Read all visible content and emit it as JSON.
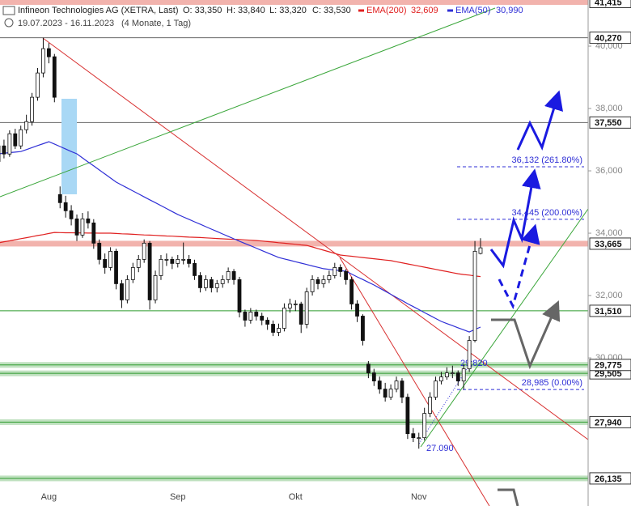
{
  "chart_data": {
    "type": "candlestick",
    "title": "Infineon Technologies AG (XETRA, Last)",
    "quote": [
      "O: 33,350",
      "H: 33,840",
      "L: 33,320",
      "C: 33,530"
    ],
    "date_range": "19.07.2023 - 16.11.2023",
    "period": "(4 Monate, 1 Tag)",
    "categories": [
      null,
      null,
      null,
      null,
      null,
      null,
      null,
      null,
      null,
      "Aug",
      null,
      null,
      null,
      null,
      null,
      null,
      null,
      null,
      null,
      null,
      null,
      null,
      null,
      null,
      null,
      null,
      null,
      null,
      null,
      null,
      null,
      null,
      "Sep",
      null,
      null,
      null,
      null,
      null,
      null,
      null,
      null,
      null,
      null,
      null,
      null,
      null,
      null,
      null,
      null,
      null,
      null,
      null,
      null,
      "Okt",
      null,
      null,
      null,
      null,
      null,
      null,
      null,
      null,
      null,
      null,
      null,
      null,
      null,
      null,
      null,
      null,
      null,
      null,
      null,
      null,
      null,
      "Nov",
      null,
      null,
      null,
      null,
      null,
      null,
      null,
      null,
      null,
      null,
      null
    ],
    "candles": [
      [
        36300,
        36950,
        36200,
        36800
      ],
      [
        36800,
        37000,
        36400,
        36540
      ],
      [
        36540,
        37300,
        36450,
        37190
      ],
      [
        37190,
        37350,
        36700,
        36800
      ],
      [
        36800,
        37450,
        36700,
        37320
      ],
      [
        37320,
        37800,
        37200,
        37580
      ],
      [
        37580,
        38500,
        37450,
        38360
      ],
      [
        38360,
        39300,
        38250,
        39140
      ],
      [
        39140,
        40270,
        39000,
        39920
      ],
      [
        39920,
        40100,
        39450,
        39660
      ],
      [
        39660,
        39750,
        38200,
        38360
      ],
      [
        35240,
        35500,
        34800,
        34980
      ],
      [
        34980,
        35200,
        34500,
        34720
      ],
      [
        34720,
        34900,
        34250,
        34460
      ],
      [
        34460,
        34600,
        33750,
        33940
      ],
      [
        33940,
        34650,
        33850,
        34460
      ],
      [
        34460,
        34700,
        34150,
        34330
      ],
      [
        34330,
        34450,
        33500,
        33680
      ],
      [
        33680,
        33800,
        33000,
        33160
      ],
      [
        33160,
        33350,
        32700,
        32900
      ],
      [
        32900,
        33550,
        32800,
        33420
      ],
      [
        33420,
        33500,
        32200,
        32380
      ],
      [
        32380,
        32500,
        31600,
        31860
      ],
      [
        31860,
        32650,
        31750,
        32510
      ],
      [
        32510,
        33050,
        32400,
        32900
      ],
      [
        32900,
        33300,
        32750,
        33160
      ],
      [
        33160,
        33800,
        33050,
        33680
      ],
      [
        33680,
        33750,
        31550,
        31860
      ],
      [
        31860,
        32800,
        31750,
        32640
      ],
      [
        32640,
        33300,
        32500,
        33160
      ],
      [
        33160,
        33350,
        32950,
        33160
      ],
      [
        33160,
        33250,
        32850,
        33030
      ],
      [
        33030,
        33300,
        32900,
        33160
      ],
      [
        33160,
        33700,
        33000,
        33160
      ],
      [
        33160,
        33300,
        32900,
        33030
      ],
      [
        33030,
        33150,
        32500,
        32640
      ],
      [
        32640,
        32750,
        32100,
        32250
      ],
      [
        32250,
        32650,
        32150,
        32510
      ],
      [
        32510,
        32600,
        32100,
        32250
      ],
      [
        32250,
        32500,
        32100,
        32380
      ],
      [
        32380,
        32650,
        32250,
        32510
      ],
      [
        32510,
        32900,
        32400,
        32770
      ],
      [
        32770,
        32850,
        32350,
        32510
      ],
      [
        32510,
        32600,
        31300,
        31470
      ],
      [
        31470,
        31550,
        31000,
        31210
      ],
      [
        31210,
        31600,
        31100,
        31470
      ],
      [
        31470,
        31550,
        31200,
        31340
      ],
      [
        31340,
        31450,
        31050,
        31210
      ],
      [
        31210,
        31300,
        30900,
        31080
      ],
      [
        31080,
        31200,
        30700,
        30820
      ],
      [
        30820,
        31100,
        30700,
        30950
      ],
      [
        30950,
        31750,
        30850,
        31600
      ],
      [
        31600,
        31900,
        31450,
        31730
      ],
      [
        31730,
        31850,
        31500,
        31730
      ],
      [
        31730,
        31800,
        30800,
        31080
      ],
      [
        31080,
        32250,
        30950,
        32120
      ],
      [
        32120,
        32650,
        32000,
        32510
      ],
      [
        32510,
        32600,
        32200,
        32380
      ],
      [
        32380,
        32650,
        32250,
        32510
      ],
      [
        32510,
        32800,
        32400,
        32640
      ],
      [
        32640,
        33050,
        32550,
        32900
      ],
      [
        32900,
        33000,
        32600,
        32770
      ],
      [
        32770,
        32850,
        32350,
        32510
      ],
      [
        32510,
        32600,
        31550,
        31730
      ],
      [
        31730,
        31850,
        31150,
        31340
      ],
      [
        31340,
        31400,
        30400,
        30560
      ],
      [
        29800,
        29900,
        29350,
        29520
      ],
      [
        29520,
        29650,
        29100,
        29260
      ],
      [
        29260,
        29400,
        28850,
        29000
      ],
      [
        29000,
        29200,
        28600,
        28740
      ],
      [
        28740,
        29150,
        28650,
        29000
      ],
      [
        29000,
        29400,
        28900,
        29260
      ],
      [
        29260,
        29350,
        28550,
        28740
      ],
      [
        28740,
        28850,
        27400,
        27570
      ],
      [
        27570,
        27750,
        27300,
        27440
      ],
      [
        27440,
        27600,
        27090,
        27440
      ],
      [
        27440,
        28400,
        27350,
        28220
      ],
      [
        28220,
        28900,
        28100,
        28740
      ],
      [
        28740,
        29400,
        28650,
        29260
      ],
      [
        29260,
        29550,
        29150,
        29390
      ],
      [
        29390,
        29700,
        29300,
        29520
      ],
      [
        29520,
        29750,
        29350,
        29520
      ],
      [
        29520,
        29600,
        29100,
        29260
      ],
      [
        29260,
        29800,
        28985,
        29650
      ],
      [
        29650,
        30700,
        29550,
        30560
      ],
      [
        30560,
        33750,
        30500,
        33420
      ],
      [
        33350,
        33840,
        33320,
        33530
      ]
    ],
    "series": [
      {
        "name": "EMA(200)",
        "color": "#e02020",
        "last_label": "32,609",
        "values": [
          33690,
          33725,
          33755,
          33790,
          33825,
          33855,
          33890,
          33925,
          33955,
          33990,
          34025,
          34020,
          34015,
          34015,
          34010,
          34010,
          34005,
          34005,
          34000,
          34000,
          34000,
          33990,
          33980,
          33975,
          33965,
          33955,
          33945,
          33940,
          33930,
          33920,
          33910,
          33905,
          33895,
          33885,
          33875,
          33870,
          33860,
          33850,
          33840,
          33830,
          33820,
          33810,
          33800,
          33795,
          33785,
          33775,
          33765,
          33750,
          33730,
          33715,
          33695,
          33680,
          33660,
          33645,
          33625,
          33610,
          33560,
          33505,
          33455,
          33405,
          33350,
          33300,
          33280,
          33260,
          33240,
          33220,
          33200,
          33180,
          33160,
          33140,
          33120,
          33085,
          33050,
          33015,
          32980,
          32945,
          32910,
          32875,
          32840,
          32805,
          32770,
          32735,
          32700,
          32675,
          32655,
          32630,
          32609
        ]
      },
      {
        "name": "EMA(50)",
        "color": "#2f2fd6",
        "last_label": "30,990",
        "values": [
          36545,
          36565,
          36585,
          36600,
          36620,
          36680,
          36745,
          36810,
          36870,
          36935,
          36860,
          36780,
          36700,
          36620,
          36545,
          36415,
          36285,
          36160,
          36030,
          35900,
          35770,
          35640,
          35545,
          35450,
          35355,
          35260,
          35165,
          35070,
          34980,
          34885,
          34790,
          34695,
          34600,
          34520,
          34445,
          34365,
          34290,
          34210,
          34130,
          34055,
          33975,
          33900,
          33820,
          33745,
          33670,
          33595,
          33520,
          33445,
          33370,
          33295,
          33220,
          33175,
          33130,
          33085,
          33040,
          32995,
          32950,
          32905,
          32860,
          32840,
          32820,
          32800,
          32780,
          32690,
          32600,
          32515,
          32425,
          32340,
          32240,
          32140,
          32040,
          31940,
          31840,
          31740,
          31645,
          31550,
          31455,
          31360,
          31265,
          31170,
          31100,
          31035,
          30965,
          30900,
          30830,
          30910,
          30990
        ]
      }
    ],
    "ylim": [
      25250,
      41480
    ],
    "yticks": [
      {
        "value": 40000,
        "label": "40,000"
      },
      {
        "value": 38000,
        "label": "38,000"
      },
      {
        "value": 36000,
        "label": "36,000"
      },
      {
        "value": 34000,
        "label": "34,000"
      },
      {
        "value": 32000,
        "label": "32,000"
      },
      {
        "value": 30000,
        "label": "30,000"
      }
    ],
    "levels": [
      {
        "value": 41415,
        "label": "41,415",
        "color": "#f2b3ad",
        "band": true
      },
      {
        "value": 40270,
        "label": "40,270",
        "color": "#666666",
        "band": false
      },
      {
        "value": 37550,
        "label": "37,550",
        "color": "#666666",
        "band": false
      },
      {
        "value": 33665,
        "label": "33,665",
        "color": "#f2b3ad",
        "band": true
      },
      {
        "value": 31510,
        "label": "31,510",
        "color": "#2e9a2e",
        "band": false
      },
      {
        "value": 29505,
        "label": "29,505",
        "color": "#2e9a2e",
        "band": true
      },
      {
        "value": 29775,
        "label": "29,775",
        "color": "#2e9a2e",
        "band": true
      },
      {
        "value": 27940,
        "label": "27,940",
        "color": "#2e9a2e",
        "band": true
      },
      {
        "value": 26135,
        "label": "26,135",
        "color": "#2e9a2e",
        "band": true
      }
    ],
    "fib_levels": [
      {
        "value": 36132,
        "label": "36,132 (261.80%)"
      },
      {
        "value": 34445,
        "label": "34,445 (200.00%)"
      },
      {
        "value": 28985,
        "label": "28,985 (0.00%)"
      }
    ],
    "annotations": [
      {
        "value": 29820,
        "label": "29,820"
      },
      {
        "value": 27090,
        "label": "27.090"
      }
    ]
  }
}
